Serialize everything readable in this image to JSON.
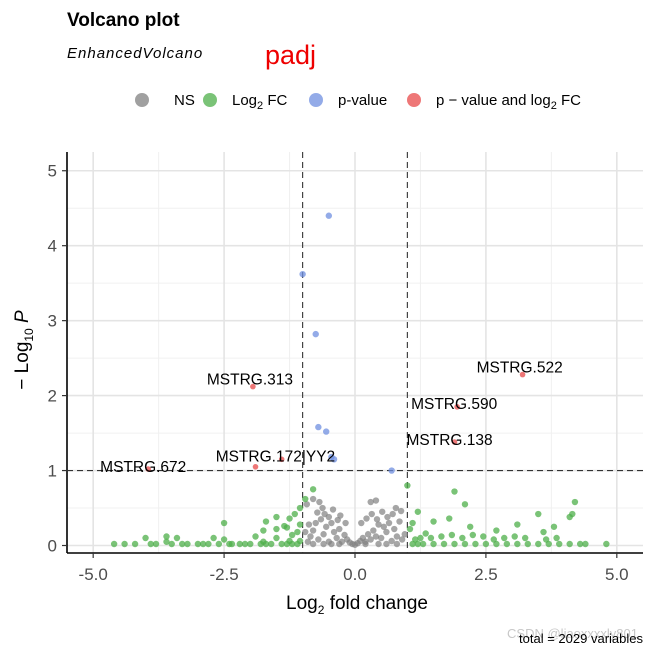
{
  "title": "Volcano plot",
  "subtitle": "EnhancedVolcano",
  "annotation": "padj",
  "caption": "total = 2029 variables",
  "watermark": "CSDN @liaoxxxxly801",
  "legend": {
    "items": [
      {
        "key": "NS",
        "label": "NS",
        "color": "#808080"
      },
      {
        "key": "log2fc",
        "label": "Log2 FC",
        "color": "#4daf4a"
      },
      {
        "key": "pvalue",
        "label": "p-value",
        "color": "#6f8fe0"
      },
      {
        "key": "both",
        "label": "p − value and log2 FC",
        "color": "#e8494a"
      }
    ]
  },
  "chart_data": {
    "type": "scatter",
    "xlabel": "Log2 fold change",
    "ylabel": "−Log10 P",
    "xlim": [
      -5.5,
      5.5
    ],
    "ylim": [
      -0.1,
      5.25
    ],
    "x_ticks": [
      -5.0,
      -2.5,
      0.0,
      2.5,
      5.0
    ],
    "x_tick_labels": [
      "-5.0",
      "-2.5",
      "0.0",
      "2.5",
      "5.0"
    ],
    "y_ticks": [
      0,
      1,
      2,
      3,
      4,
      5
    ],
    "y_tick_labels": [
      "0",
      "1",
      "2",
      "3",
      "4",
      "5"
    ],
    "grid": true,
    "cutoffs": {
      "log2fc": [
        -1,
        1
      ],
      "p_line_y": 1.0
    },
    "colors": {
      "NS": "#808080",
      "log2fc": "#4daf4a",
      "pvalue": "#6f8fe0",
      "both": "#e8494a"
    },
    "series": [
      {
        "name": "NS",
        "points": [
          [
            -0.9,
            0.05
          ],
          [
            -0.85,
            0.12
          ],
          [
            -0.8,
            0.2
          ],
          [
            -0.75,
            0.3
          ],
          [
            -0.7,
            0.08
          ],
          [
            -0.65,
            0.35
          ],
          [
            -0.6,
            0.15
          ],
          [
            -0.55,
            0.25
          ],
          [
            -0.5,
            0.05
          ],
          [
            -0.45,
            0.3
          ],
          [
            -0.4,
            0.18
          ],
          [
            -0.35,
            0.1
          ],
          [
            -0.3,
            0.22
          ],
          [
            -0.25,
            0.05
          ],
          [
            -0.2,
            0.14
          ],
          [
            -0.15,
            0.08
          ],
          [
            -0.1,
            0.04
          ],
          [
            -0.05,
            0.02
          ],
          [
            0.0,
            0.01
          ],
          [
            0.05,
            0.03
          ],
          [
            0.1,
            0.06
          ],
          [
            0.15,
            0.1
          ],
          [
            0.2,
            0.05
          ],
          [
            0.25,
            0.15
          ],
          [
            0.3,
            0.08
          ],
          [
            0.35,
            0.2
          ],
          [
            0.4,
            0.12
          ],
          [
            0.45,
            0.28
          ],
          [
            0.5,
            0.1
          ],
          [
            0.55,
            0.25
          ],
          [
            0.6,
            0.18
          ],
          [
            0.65,
            0.3
          ],
          [
            0.7,
            0.06
          ],
          [
            0.75,
            0.22
          ],
          [
            0.8,
            0.12
          ],
          [
            0.85,
            0.32
          ],
          [
            0.9,
            0.08
          ],
          [
            0.95,
            0.15
          ],
          [
            -0.95,
            0.18
          ],
          [
            -0.88,
            0.28
          ],
          [
            -0.72,
            0.44
          ],
          [
            -0.62,
            0.5
          ],
          [
            -0.58,
            0.42
          ],
          [
            -0.5,
            0.38
          ],
          [
            -0.42,
            0.48
          ],
          [
            -0.33,
            0.34
          ],
          [
            -0.28,
            0.4
          ],
          [
            -0.18,
            0.3
          ],
          [
            0.12,
            0.3
          ],
          [
            0.22,
            0.36
          ],
          [
            0.32,
            0.42
          ],
          [
            0.42,
            0.35
          ],
          [
            0.52,
            0.45
          ],
          [
            0.62,
            0.38
          ],
          [
            0.72,
            0.42
          ],
          [
            0.78,
            0.5
          ],
          [
            0.88,
            0.46
          ],
          [
            0.4,
            0.6
          ],
          [
            0.3,
            0.58
          ],
          [
            -0.68,
            0.58
          ],
          [
            -0.8,
            0.62
          ],
          [
            -0.92,
            0.55
          ],
          [
            0.2,
            0.02
          ],
          [
            -0.3,
            0.02
          ],
          [
            0.6,
            0.02
          ],
          [
            -0.6,
            0.02
          ],
          [
            0.8,
            0.02
          ],
          [
            -0.8,
            0.02
          ],
          [
            0.45,
            0.02
          ],
          [
            -0.45,
            0.02
          ]
        ]
      },
      {
        "name": "Log2 FC",
        "points": [
          [
            -4.4,
            0.02
          ],
          [
            -4.2,
            0.02
          ],
          [
            -3.8,
            0.02
          ],
          [
            -3.6,
            0.05
          ],
          [
            -3.5,
            0.02
          ],
          [
            -3.3,
            0.02
          ],
          [
            -3.2,
            0.02
          ],
          [
            -3.0,
            0.02
          ],
          [
            -2.8,
            0.02
          ],
          [
            -2.6,
            0.02
          ],
          [
            -2.4,
            0.02
          ],
          [
            -2.2,
            0.02
          ],
          [
            -2.0,
            0.02
          ],
          [
            -1.8,
            0.02
          ],
          [
            -1.6,
            0.02
          ],
          [
            -1.4,
            0.02
          ],
          [
            -1.2,
            0.02
          ],
          [
            -1.1,
            0.02
          ],
          [
            -4.6,
            0.02
          ],
          [
            -3.9,
            0.02
          ],
          [
            -2.9,
            0.02
          ],
          [
            -2.1,
            0.02
          ],
          [
            -1.7,
            0.02
          ],
          [
            -1.3,
            0.02
          ],
          [
            -4.0,
            0.1
          ],
          [
            -3.6,
            0.12
          ],
          [
            -3.4,
            0.1
          ],
          [
            -2.7,
            0.1
          ],
          [
            -2.5,
            0.08
          ],
          [
            -1.9,
            0.12
          ],
          [
            -1.5,
            0.1
          ],
          [
            -1.2,
            0.14
          ],
          [
            -2.35,
            0.02
          ],
          [
            -1.75,
            0.05
          ],
          [
            -1.25,
            0.06
          ],
          [
            -1.05,
            0.06
          ],
          [
            -2.5,
            0.3
          ],
          [
            -1.7,
            0.32
          ],
          [
            -1.5,
            0.22
          ],
          [
            -1.3,
            0.24
          ],
          [
            -1.1,
            0.18
          ],
          [
            -1.05,
            0.28
          ],
          [
            -1.15,
            0.42
          ],
          [
            -1.05,
            0.5
          ],
          [
            -0.95,
            0.62
          ],
          [
            -0.8,
            0.75
          ],
          [
            -1.75,
            0.2
          ],
          [
            -1.5,
            0.38
          ],
          [
            -1.35,
            0.26
          ],
          [
            -1.25,
            0.36
          ],
          [
            1.1,
            0.02
          ],
          [
            1.2,
            0.02
          ],
          [
            1.3,
            0.02
          ],
          [
            1.5,
            0.02
          ],
          [
            1.7,
            0.02
          ],
          [
            1.9,
            0.02
          ],
          [
            2.1,
            0.02
          ],
          [
            2.3,
            0.02
          ],
          [
            2.5,
            0.02
          ],
          [
            2.7,
            0.02
          ],
          [
            2.9,
            0.02
          ],
          [
            3.1,
            0.02
          ],
          [
            3.3,
            0.02
          ],
          [
            3.5,
            0.02
          ],
          [
            3.7,
            0.02
          ],
          [
            3.9,
            0.02
          ],
          [
            4.1,
            0.02
          ],
          [
            4.3,
            0.02
          ],
          [
            1.15,
            0.08
          ],
          [
            1.25,
            0.1
          ],
          [
            1.45,
            0.1
          ],
          [
            1.65,
            0.12
          ],
          [
            1.85,
            0.14
          ],
          [
            2.05,
            0.1
          ],
          [
            2.25,
            0.14
          ],
          [
            2.45,
            0.12
          ],
          [
            2.65,
            0.08
          ],
          [
            2.85,
            0.1
          ],
          [
            3.05,
            0.12
          ],
          [
            3.25,
            0.1
          ],
          [
            3.65,
            0.08
          ],
          [
            3.85,
            0.1
          ],
          [
            1.1,
            0.3
          ],
          [
            1.2,
            0.45
          ],
          [
            1.05,
            0.22
          ],
          [
            1.5,
            0.32
          ],
          [
            1.8,
            0.36
          ],
          [
            2.2,
            0.25
          ],
          [
            2.7,
            0.2
          ],
          [
            3.1,
            0.28
          ],
          [
            3.6,
            0.18
          ],
          [
            3.8,
            0.25
          ],
          [
            4.1,
            0.38
          ],
          [
            4.15,
            0.42
          ],
          [
            4.2,
            0.58
          ],
          [
            3.5,
            0.42
          ],
          [
            1.9,
            0.72
          ],
          [
            2.1,
            0.55
          ],
          [
            1.0,
            0.8
          ],
          [
            4.8,
            0.02
          ],
          [
            4.4,
            0.02
          ],
          [
            1.35,
            0.16
          ]
        ]
      },
      {
        "name": "p-value",
        "points": [
          [
            -0.5,
            4.4
          ],
          [
            -1.0,
            3.62
          ],
          [
            -0.75,
            2.82
          ],
          [
            -0.7,
            1.58
          ],
          [
            -0.55,
            1.52
          ],
          [
            -0.4,
            1.15
          ],
          [
            -0.45,
            1.18
          ],
          [
            0.7,
            1.0
          ]
        ]
      },
      {
        "name": "p − value and log2 FC",
        "points": [
          [
            3.2,
            2.28
          ],
          [
            1.95,
            1.85
          ],
          [
            1.9,
            1.38
          ],
          [
            -1.95,
            2.12
          ],
          [
            -1.4,
            1.15
          ],
          [
            -1.9,
            1.05
          ],
          [
            -3.95,
            1.02
          ]
        ]
      }
    ],
    "labels": [
      {
        "text": "MSTRG.522",
        "x": 3.2,
        "y": 2.28
      },
      {
        "text": "MSTRG.590",
        "x": 1.95,
        "y": 1.85
      },
      {
        "text": "MSTRG.138",
        "x": 1.9,
        "y": 1.38
      },
      {
        "text": "MSTRG.313",
        "x": -1.95,
        "y": 2.12
      },
      {
        "text": "MSTRG.172|YY2",
        "x": -1.4,
        "y": 1.15
      },
      {
        "text": "MSTRG.672",
        "x": -3.95,
        "y": 1.02
      }
    ]
  }
}
